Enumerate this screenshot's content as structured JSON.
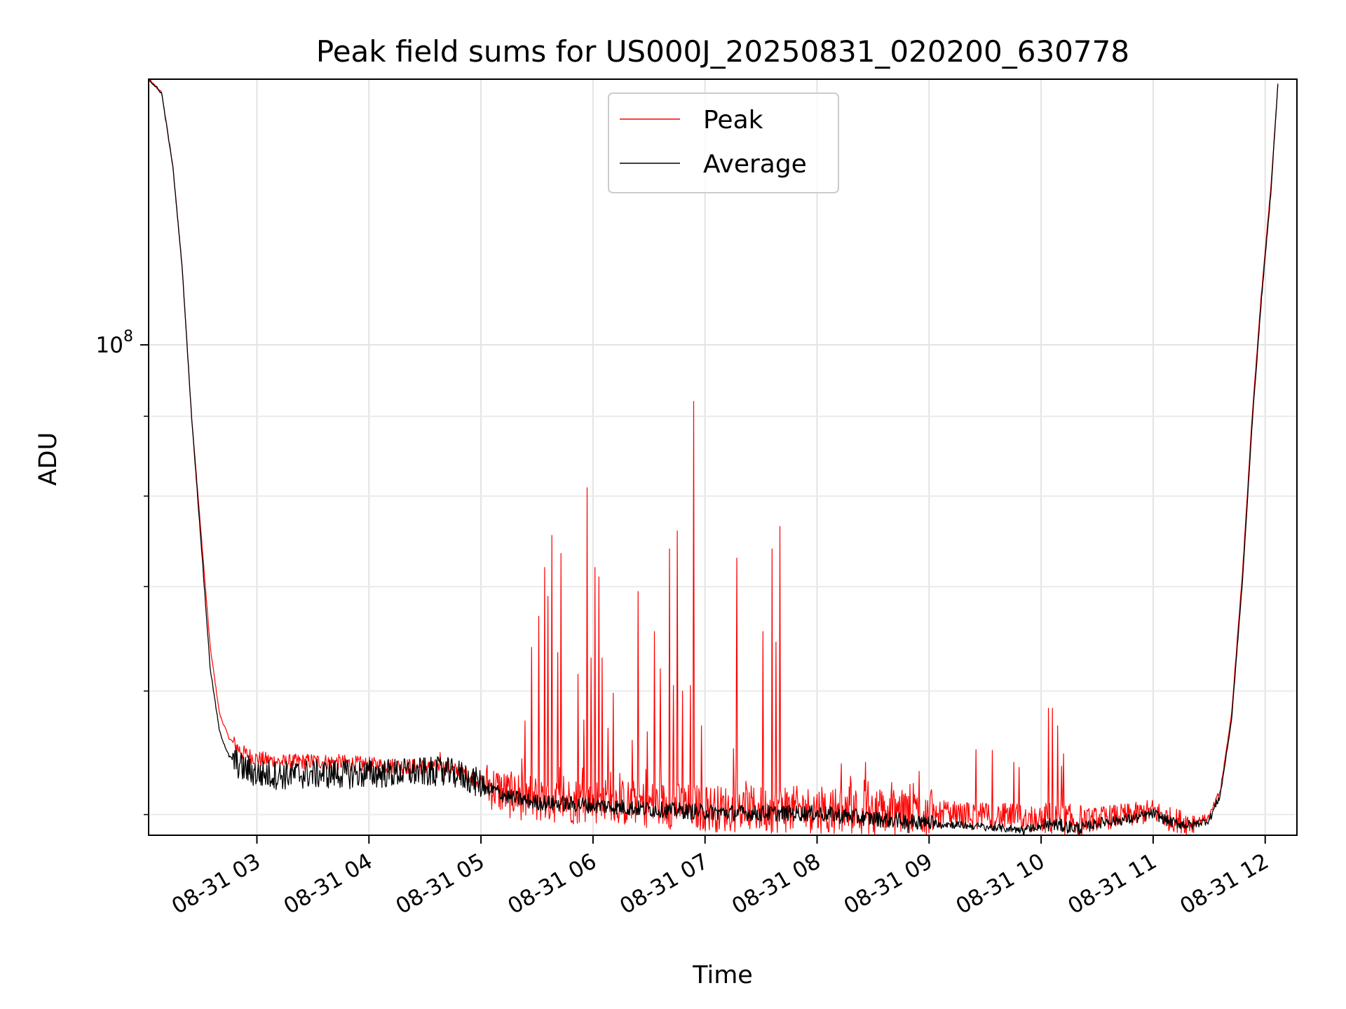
{
  "chart_data": {
    "type": "line",
    "title": "Peak field sums for US000J_20250831_020200_630778",
    "xlabel": "Time",
    "ylabel": "ADU",
    "yscale": "log",
    "xlim": [
      "08-31 02:02",
      "08-31 12:17"
    ],
    "ylim": [
      48500000,
      148000000
    ],
    "grid": true,
    "legend": "top-center",
    "x_ticks": [
      "08-31 03",
      "08-31 04",
      "08-31 05",
      "08-31 06",
      "08-31 07",
      "08-31 08",
      "08-31 09",
      "08-31 10",
      "08-31 11",
      "08-31 12"
    ],
    "y_ticks": [
      {
        "value": 100000000,
        "base": "10",
        "exp": "8"
      }
    ],
    "y_minor_ticks": [
      50000000,
      60000000,
      70000000,
      80000000,
      90000000,
      200000000
    ],
    "series": [
      {
        "name": "Peak",
        "color": "#ff0000",
        "base": [
          [
            "08-31 02:02",
            148000000
          ],
          [
            "08-31 02:09",
            145000000
          ],
          [
            "08-31 02:15",
            130000000
          ],
          [
            "08-31 02:20",
            112000000
          ],
          [
            "08-31 02:25",
            90000000
          ],
          [
            "08-31 02:30",
            76000000
          ],
          [
            "08-31 02:35",
            64000000
          ],
          [
            "08-31 02:40",
            58000000
          ],
          [
            "08-31 02:45",
            56000000
          ],
          [
            "08-31 02:52",
            54800000
          ],
          [
            "08-31 03:00",
            54300000
          ],
          [
            "08-31 03:15",
            54000000
          ],
          [
            "08-31 03:30",
            54100000
          ],
          [
            "08-31 03:45",
            54000000
          ],
          [
            "08-31 04:00",
            53800000
          ],
          [
            "08-31 04:20",
            53700000
          ],
          [
            "08-31 04:40",
            53600000
          ],
          [
            "08-31 04:50",
            53200000
          ],
          [
            "08-31 05:00",
            52500000
          ],
          [
            "08-31 05:15",
            51500000
          ],
          [
            "08-31 05:30",
            51200000
          ],
          [
            "08-31 06:00",
            51000000
          ],
          [
            "08-31 06:30",
            50800000
          ],
          [
            "08-31 07:00",
            50500000
          ],
          [
            "08-31 07:30",
            50400000
          ],
          [
            "08-31 08:00",
            50400000
          ],
          [
            "08-31 08:30",
            50200000
          ],
          [
            "08-31 09:00",
            50100000
          ],
          [
            "08-31 09:30",
            49900000
          ],
          [
            "08-31 09:50",
            49800000
          ],
          [
            "08-31 10:05",
            49700000
          ],
          [
            "08-31 10:20",
            49500000
          ],
          [
            "08-31 10:35",
            49800000
          ],
          [
            "08-31 10:50",
            50000000
          ],
          [
            "08-31 11:00",
            50300000
          ],
          [
            "08-31 11:08",
            49700000
          ],
          [
            "08-31 11:20",
            49400000
          ],
          [
            "08-31 11:30",
            49800000
          ],
          [
            "08-31 11:36",
            51800000
          ],
          [
            "08-31 11:42",
            58000000
          ],
          [
            "08-31 11:48",
            72000000
          ],
          [
            "08-31 11:53",
            90000000
          ],
          [
            "08-31 11:58",
            108000000
          ],
          [
            "08-31 12:03",
            126000000
          ],
          [
            "08-31 12:07",
            148000000
          ]
        ],
        "spikes": [
          [
            "08-31 04:38",
            54800000
          ],
          [
            "08-31 05:22",
            54300000
          ],
          [
            "08-31 05:27",
            64000000
          ],
          [
            "08-31 05:31",
            67000000
          ],
          [
            "08-31 05:34",
            72000000
          ],
          [
            "08-31 05:36",
            69000000
          ],
          [
            "08-31 05:38",
            75500000
          ],
          [
            "08-31 05:41",
            63500000
          ],
          [
            "08-31 05:43",
            73500000
          ],
          [
            "08-31 05:52",
            61500000
          ],
          [
            "08-31 05:55",
            57500000
          ],
          [
            "08-31 05:57",
            81000000
          ],
          [
            "08-31 05:59",
            63000000
          ],
          [
            "08-31 06:01",
            72000000
          ],
          [
            "08-31 06:03",
            71000000
          ],
          [
            "08-31 06:05",
            63000000
          ],
          [
            "08-31 06:08",
            56800000
          ],
          [
            "08-31 06:11",
            59800000
          ],
          [
            "08-31 06:21",
            55800000
          ],
          [
            "08-31 06:24",
            69500000
          ],
          [
            "08-31 06:29",
            56500000
          ],
          [
            "08-31 06:33",
            65500000
          ],
          [
            "08-31 06:36",
            62000000
          ],
          [
            "08-31 06:41",
            74000000
          ],
          [
            "08-31 06:43",
            60500000
          ],
          [
            "08-31 06:45",
            76000000
          ],
          [
            "08-31 06:48",
            60000000
          ],
          [
            "08-31 06:52",
            60500000
          ],
          [
            "08-31 06:54",
            92000000
          ],
          [
            "08-31 06:58",
            57000000
          ],
          [
            "08-31 07:17",
            73000000
          ],
          [
            "08-31 07:31",
            65500000
          ],
          [
            "08-31 07:36",
            74000000
          ],
          [
            "08-31 07:38",
            64500000
          ],
          [
            "08-31 07:40",
            76500000
          ],
          [
            "08-31 07:43",
            52000000
          ],
          [
            "08-31 10:04",
            58500000
          ],
          [
            "08-31 10:06",
            58500000
          ],
          [
            "08-31 10:09",
            57000000
          ],
          [
            "08-31 10:12",
            54700000
          ]
        ]
      },
      {
        "name": "Average",
        "color": "#000000",
        "base": [
          [
            "08-31 02:02",
            148000000
          ],
          [
            "08-31 02:09",
            145000000
          ],
          [
            "08-31 02:15",
            130000000
          ],
          [
            "08-31 02:20",
            112000000
          ],
          [
            "08-31 02:25",
            90000000
          ],
          [
            "08-31 02:30",
            75000000
          ],
          [
            "08-31 02:35",
            62000000
          ],
          [
            "08-31 02:40",
            56500000
          ],
          [
            "08-31 02:45",
            54500000
          ],
          [
            "08-31 02:52",
            53600000
          ],
          [
            "08-31 03:00",
            53100000
          ],
          [
            "08-31 03:15",
            53000000
          ],
          [
            "08-31 03:30",
            53100000
          ],
          [
            "08-31 03:45",
            53100000
          ],
          [
            "08-31 04:00",
            53100000
          ],
          [
            "08-31 04:20",
            53200000
          ],
          [
            "08-31 04:40",
            53300000
          ],
          [
            "08-31 04:50",
            53000000
          ],
          [
            "08-31 05:00",
            52300000
          ],
          [
            "08-31 05:15",
            51300000
          ],
          [
            "08-31 05:30",
            50900000
          ],
          [
            "08-31 06:00",
            50700000
          ],
          [
            "08-31 06:30",
            50400000
          ],
          [
            "08-31 07:00",
            50200000
          ],
          [
            "08-31 07:30",
            50100000
          ],
          [
            "08-31 08:00",
            50100000
          ],
          [
            "08-31 08:30",
            49700000
          ],
          [
            "08-31 09:00",
            49400000
          ],
          [
            "08-31 09:30",
            49100000
          ],
          [
            "08-31 09:50",
            48900000
          ],
          [
            "08-31 10:05",
            49300000
          ],
          [
            "08-31 10:20",
            49000000
          ],
          [
            "08-31 10:35",
            49500000
          ],
          [
            "08-31 10:50",
            49700000
          ],
          [
            "08-31 11:00",
            50100000
          ],
          [
            "08-31 11:08",
            49500000
          ],
          [
            "08-31 11:20",
            49200000
          ],
          [
            "08-31 11:30",
            49600000
          ],
          [
            "08-31 11:36",
            51500000
          ],
          [
            "08-31 11:42",
            57500000
          ],
          [
            "08-31 11:48",
            71000000
          ],
          [
            "08-31 11:53",
            89000000
          ],
          [
            "08-31 11:58",
            107000000
          ],
          [
            "08-31 12:03",
            125000000
          ],
          [
            "08-31 12:07",
            148000000
          ]
        ]
      }
    ]
  }
}
